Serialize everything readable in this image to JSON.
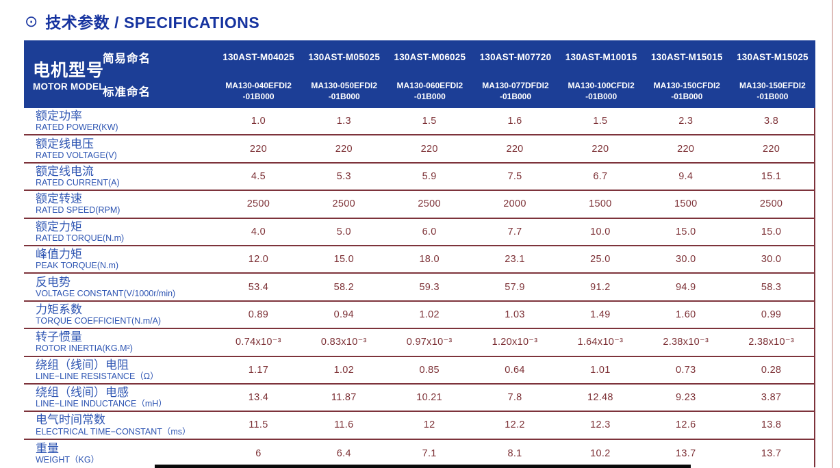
{
  "page": {
    "title_icon": "⊙",
    "title": "技术参数 / SPECIFICATIONS"
  },
  "colors": {
    "header_bg": "#1c3e96",
    "title_blue": "#16339f",
    "label_blue": "#2d54b2",
    "value_maroon": "#7d3136",
    "separator": "#7d333b",
    "edge_line": "#debdb9"
  },
  "table": {
    "header": {
      "row_label_cn": "电机型号",
      "row_label_en": "MOTOR MODEL",
      "simple_name_label": "简易命名",
      "standard_name_label": "标准命名",
      "columns": [
        {
          "simple": "130AST-M04025",
          "standard_line1": "MA130-040EFDI2",
          "standard_line2": "-01B000"
        },
        {
          "simple": "130AST-M05025",
          "standard_line1": "MA130-050EFDI2",
          "standard_line2": "-01B000"
        },
        {
          "simple": "130AST-M06025",
          "standard_line1": "MA130-060EFDI2",
          "standard_line2": "-01B000"
        },
        {
          "simple": "130AST-M07720",
          "standard_line1": "MA130-077DFDI2",
          "standard_line2": "-01B000"
        },
        {
          "simple": "130AST-M10015",
          "standard_line1": "MA130-100CFDI2",
          "standard_line2": "-01B000"
        },
        {
          "simple": "130AST-M15015",
          "standard_line1": "MA130-150CFDI2",
          "standard_line2": "-01B000"
        },
        {
          "simple": "130AST-M15025",
          "standard_line1": "MA130-150EFDI2",
          "standard_line2": "-01B000"
        }
      ]
    },
    "rows": [
      {
        "cn": "额定功率",
        "en": "RATED POWER(KW)",
        "values": [
          "1.0",
          "1.3",
          "1.5",
          "1.6",
          "1.5",
          "2.3",
          "3.8"
        ]
      },
      {
        "cn": "额定线电压",
        "en": "RATED VOLTAGE(V)",
        "values": [
          "220",
          "220",
          "220",
          "220",
          "220",
          "220",
          "220"
        ]
      },
      {
        "cn": "额定线电流",
        "en": "RATED CURRENT(A)",
        "values": [
          "4.5",
          "5.3",
          "5.9",
          "7.5",
          "6.7",
          "9.4",
          "15.1"
        ]
      },
      {
        "cn": "额定转速",
        "en": "RATED SPEED(RPM)",
        "values": [
          "2500",
          "2500",
          "2500",
          "2000",
          "1500",
          "1500",
          "2500"
        ]
      },
      {
        "cn": "额定力矩",
        "en": "RATED TORQUE(N.m)",
        "values": [
          "4.0",
          "5.0",
          "6.0",
          "7.7",
          "10.0",
          "15.0",
          "15.0"
        ]
      },
      {
        "cn": "峰值力矩",
        "en": "PEAK TORQUE(N.m)",
        "values": [
          "12.0",
          "15.0",
          "18.0",
          "23.1",
          "25.0",
          "30.0",
          "30.0"
        ]
      },
      {
        "cn": "反电势",
        "en": "VOLTAGE CONSTANT(V/1000r/min)",
        "values": [
          "53.4",
          "58.2",
          "59.3",
          "57.9",
          "91.2",
          "94.9",
          "58.3"
        ]
      },
      {
        "cn": "力矩系数",
        "en": "TORQUE COEFFICIENT(N.m/A)",
        "values": [
          "0.89",
          "0.94",
          "1.02",
          "1.03",
          "1.49",
          "1.60",
          "0.99"
        ]
      },
      {
        "cn": "转子惯量",
        "en": "ROTOR INERTIA(KG.M²)",
        "values": [
          "0.74x10⁻³",
          "0.83x10⁻³",
          "0.97x10⁻³",
          "1.20x10⁻³",
          "1.64x10⁻³",
          "2.38x10⁻³",
          "2.38x10⁻³"
        ]
      },
      {
        "cn": "绕组（线间）电阻",
        "en": "LINE−LINE RESISTANCE（Ω）",
        "values": [
          "1.17",
          "1.02",
          "0.85",
          "0.64",
          "1.01",
          "0.73",
          "0.28"
        ]
      },
      {
        "cn": "绕组（线间）电感",
        "en": "LINE−LINE INDUCTANCE（mH）",
        "values": [
          "13.4",
          "11.87",
          "10.21",
          "7.8",
          "12.48",
          "9.23",
          "3.87"
        ]
      },
      {
        "cn": "电气时间常数",
        "en": "ELECTRICAL TIME−CONSTANT（ms）",
        "values": [
          "11.5",
          "11.6",
          "12",
          "12.2",
          "12.3",
          "12.6",
          "13.8"
        ]
      },
      {
        "cn": "重量",
        "en": "WEIGHT（KG）",
        "values": [
          "6",
          "6.4",
          "7.1",
          "8.1",
          "10.2",
          "13.7",
          "13.7"
        ]
      }
    ]
  }
}
